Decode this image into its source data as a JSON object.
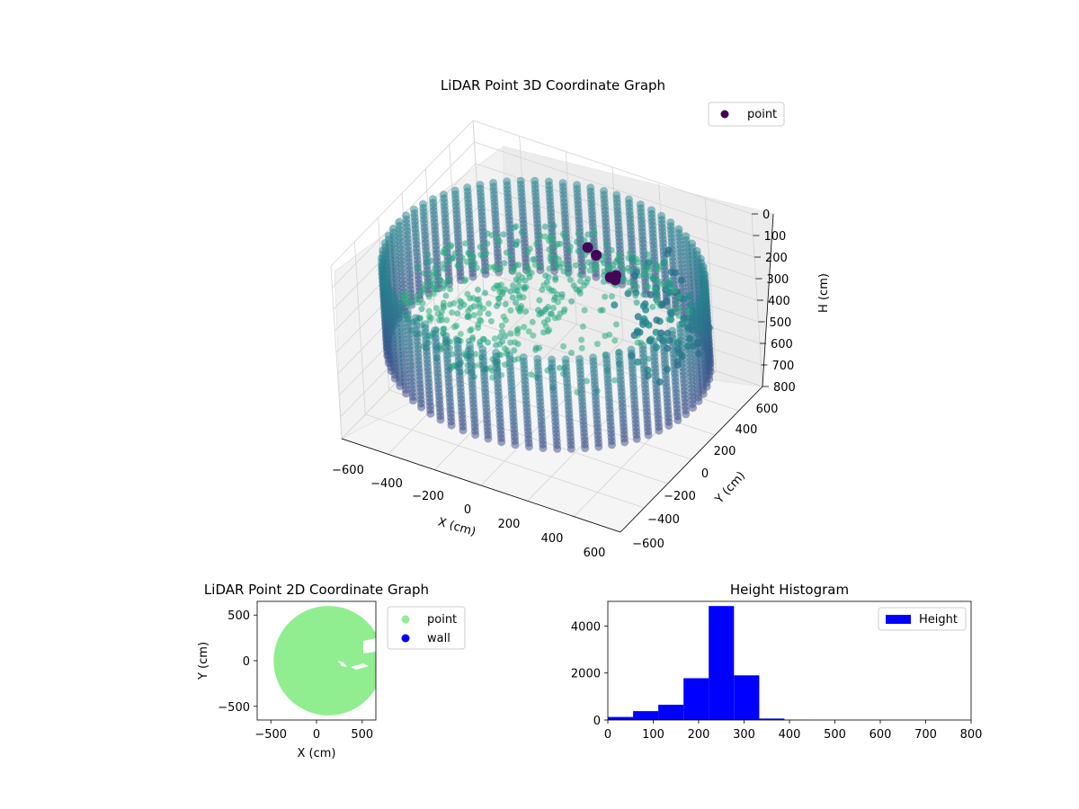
{
  "chart_data": [
    {
      "type": "scatter",
      "projection": "3d",
      "title": "LiDAR Point 3D Coordinate Graph",
      "xlabel": "X (cm)",
      "ylabel": "Y (cm)",
      "zlabel": "H (cm)",
      "x_ticks": [
        "−600",
        "−400",
        "−200",
        "0",
        "200",
        "400",
        "600"
      ],
      "y_ticks": [
        "−600",
        "−400",
        "−200",
        "0",
        "200",
        "400",
        "600"
      ],
      "z_ticks": [
        "0",
        "100",
        "200",
        "300",
        "400",
        "500",
        "600",
        "700",
        "800"
      ],
      "xlim": [
        -600,
        600
      ],
      "ylim": [
        -600,
        600
      ],
      "zlim": [
        800,
        0
      ],
      "z_inverted": true,
      "grid": true,
      "colormap": "viridis",
      "legend": {
        "placement": "upper-right",
        "entries": [
          {
            "label": "point",
            "color": "#440154"
          }
        ]
      },
      "series": [
        {
          "name": "point",
          "ring": {
            "radius": 620,
            "h_top": 140,
            "h_bottom": 560
          },
          "floor": {
            "h": 330
          },
          "tall_points": [
            {
              "x": 80,
              "y": 220,
              "h": 130
            },
            {
              "x": 110,
              "y": 230,
              "h": 160
            },
            {
              "x": 160,
              "y": 240,
              "h": 250
            },
            {
              "x": 170,
              "y": 260,
              "h": 270
            },
            {
              "x": 180,
              "y": 250,
              "h": 240
            }
          ]
        }
      ]
    },
    {
      "type": "scatter",
      "title": "LiDAR Point 2D Coordinate Graph",
      "xlabel": "X (cm)",
      "ylabel": "Y (cm)",
      "x_ticks": [
        "−500",
        "0",
        "500"
      ],
      "y_ticks": [
        "500",
        "0",
        "−500"
      ],
      "xlim": [
        -650,
        650
      ],
      "ylim": [
        -650,
        650
      ],
      "legend": {
        "placement": "outside-right",
        "entries": [
          {
            "label": "point",
            "color": "#90ee90"
          },
          {
            "label": "wall",
            "color": "#0000ff"
          }
        ]
      },
      "series": [
        {
          "name": "point",
          "color": "#90ee90",
          "shape": "disc",
          "center": [
            130,
            0
          ],
          "radius": 600
        },
        {
          "name": "wall",
          "color": "#0000ff",
          "points": []
        }
      ]
    },
    {
      "type": "bar",
      "subtype": "histogram",
      "title": "Height Histogram",
      "xlabel": "",
      "ylabel": "",
      "x_ticks": [
        "0",
        "100",
        "200",
        "300",
        "400",
        "500",
        "600",
        "700",
        "800"
      ],
      "y_ticks": [
        "0",
        "2000",
        "4000"
      ],
      "xlim": [
        0,
        800
      ],
      "ylim": [
        0,
        5050
      ],
      "color": "#0000ff",
      "legend": {
        "placement": "upper-right",
        "entries": [
          {
            "label": "Height",
            "color": "#0000ff"
          }
        ]
      },
      "bin_width": 55.6,
      "bin_edges": [
        0,
        55.6,
        111.1,
        166.7,
        222.2,
        277.8,
        333.3,
        388.9,
        444.4,
        500,
        555.6,
        611.1,
        666.7,
        722.2,
        777.8
      ],
      "series": [
        {
          "name": "Height",
          "values": [
            130,
            380,
            650,
            1780,
            4850,
            1900,
            60,
            8,
            5,
            5,
            4,
            4,
            3,
            3
          ]
        }
      ]
    }
  ]
}
